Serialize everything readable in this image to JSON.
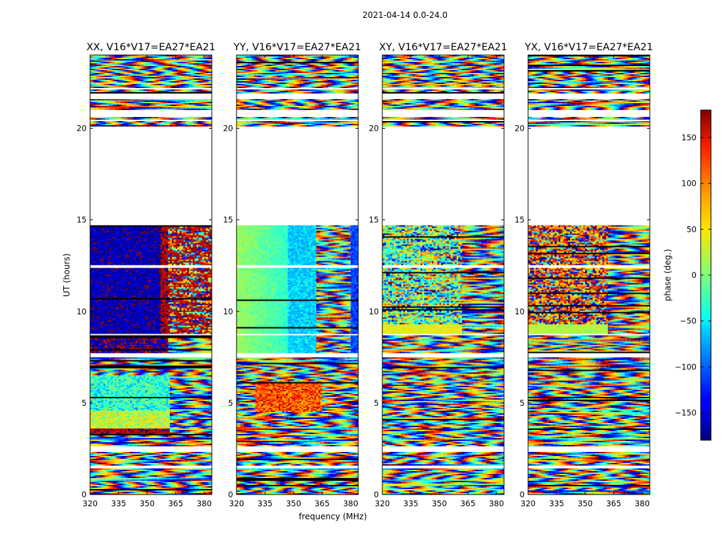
{
  "figure_title": "2021-04-14 0.0-24.0",
  "chart_data": {
    "type": "heatmap",
    "title": "2021-04-14 0.0-24.0",
    "xlabel": "frequency (MHz)",
    "ylabel": "UT (hours)",
    "xlim": [
      320,
      384
    ],
    "ylim": [
      0,
      24
    ],
    "xticks": [
      320,
      335,
      350,
      365,
      380
    ],
    "yticks": [
      0,
      5,
      10,
      15,
      20
    ],
    "panels": [
      {
        "title": "XX, V16*V17=EA27*EA21",
        "pattern": "xx"
      },
      {
        "title": "YY, V16*V17=EA27*EA21",
        "pattern": "yy"
      },
      {
        "title": "XY, V16*V17=EA27*EA21",
        "pattern": "xy"
      },
      {
        "title": "YX, V16*V17=EA27*EA21",
        "pattern": "yx"
      }
    ],
    "colorbar": {
      "label": "phase (deg.)",
      "range": [
        -180,
        180
      ],
      "ticks": [
        150,
        100,
        50,
        0,
        -50,
        -100,
        -150
      ],
      "colormap": "jet"
    },
    "data_bands_hours": [
      [
        0.0,
        1.4
      ],
      [
        1.6,
        2.3
      ],
      [
        2.6,
        7.5
      ],
      [
        7.7,
        8.7
      ],
      [
        8.75,
        12.4
      ],
      [
        12.55,
        14.7
      ],
      [
        20.1,
        20.4
      ],
      [
        20.5,
        20.6
      ],
      [
        21.0,
        21.6
      ],
      [
        21.9,
        22.1
      ],
      [
        22.2,
        24.0
      ]
    ]
  }
}
